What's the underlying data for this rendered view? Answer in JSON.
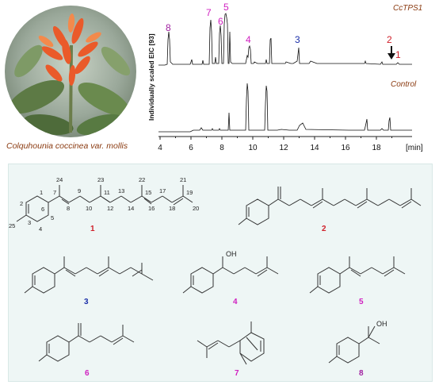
{
  "photo": {
    "caption": "Colquhounia coccinea var. mollis"
  },
  "chromatogram": {
    "ylabel": "Individually scaled EIC [93]",
    "xlabel_unit": "[min]",
    "ticks": [
      "4",
      "6",
      "8",
      "10",
      "12",
      "14",
      "16",
      "18"
    ],
    "trace_top_label": "CcTPS1",
    "trace_bottom_label": "Control",
    "peak_labels": [
      {
        "text": "8",
        "color": "#a020a0"
      },
      {
        "text": "7",
        "color": "#d020c0"
      },
      {
        "text": "6",
        "color": "#d020c0"
      },
      {
        "text": "5",
        "color": "#d020c0"
      },
      {
        "text": "4",
        "color": "#d020c0"
      },
      {
        "text": "3",
        "color": "#1a2ea8"
      },
      {
        "text": "2",
        "color": "#d0202a"
      },
      {
        "text": "1",
        "color": "#d0202a"
      }
    ]
  },
  "structures": {
    "compound_labels": [
      {
        "text": "1",
        "color": "#d0202a"
      },
      {
        "text": "2",
        "color": "#d0202a"
      },
      {
        "text": "3",
        "color": "#1a2ea8"
      },
      {
        "text": "4",
        "color": "#d020c0"
      },
      {
        "text": "5",
        "color": "#d020c0"
      },
      {
        "text": "6",
        "color": "#d020c0"
      },
      {
        "text": "7",
        "color": "#d020c0"
      },
      {
        "text": "8",
        "color": "#a020a0"
      }
    ],
    "oh_label": "OH",
    "atom_numbers": [
      "1",
      "2",
      "3",
      "4",
      "5",
      "6",
      "7",
      "8",
      "9",
      "10",
      "11",
      "12",
      "13",
      "14",
      "15",
      "16",
      "17",
      "18",
      "19",
      "20",
      "21",
      "22",
      "23",
      "24",
      "25"
    ]
  }
}
